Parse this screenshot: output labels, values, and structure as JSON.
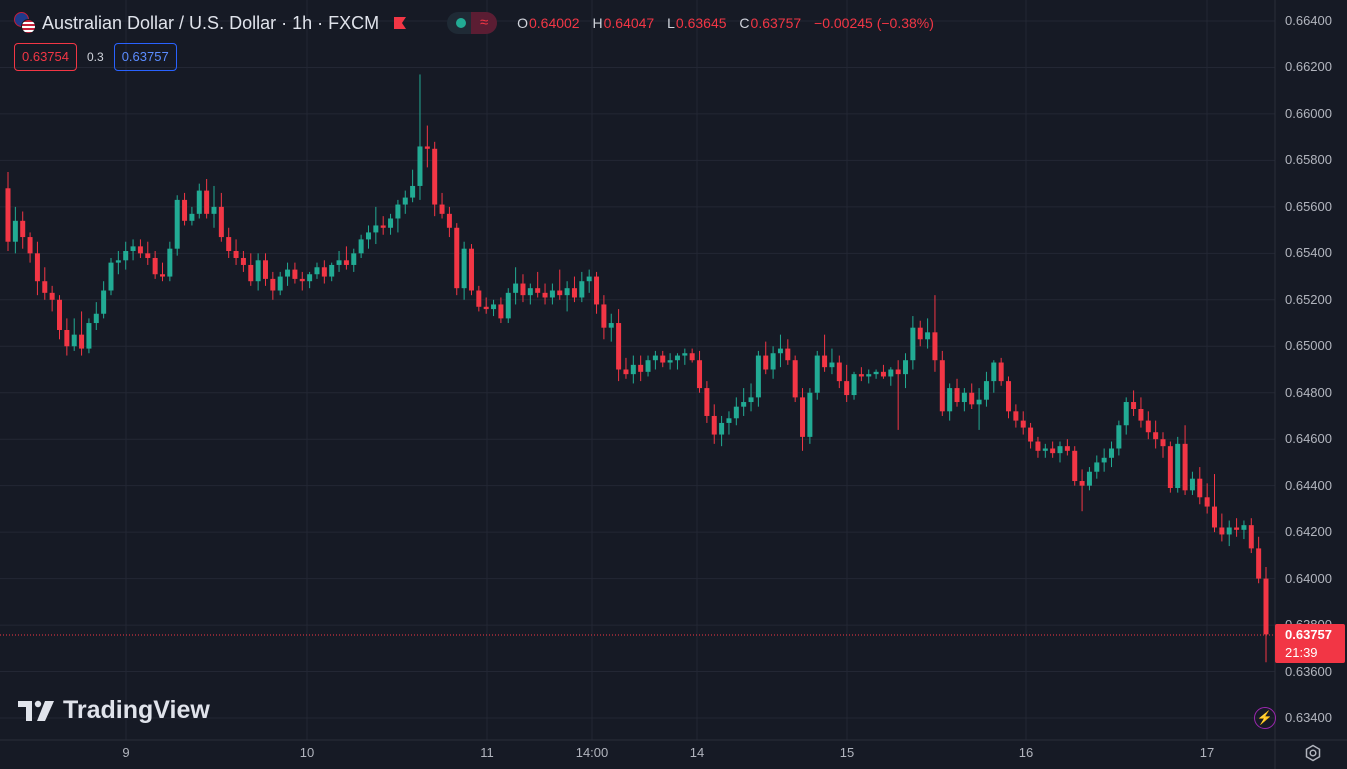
{
  "header": {
    "title": "Australian Dollar / U.S. Dollar · 1h · FXCM",
    "ohlc": {
      "o_label": "O",
      "o": "0.64002",
      "h_label": "H",
      "h": "0.64047",
      "l_label": "L",
      "l": "0.63645",
      "c_label": "C",
      "c": "0.63757",
      "change": "−0.00245 (−0.38%)"
    },
    "market_status_icon": "dot-icon",
    "wave_icon": "≈"
  },
  "quote": {
    "bid": "0.63754",
    "spread": "0.3",
    "ask": "0.63757"
  },
  "price_axis": {
    "labels": [
      "0.66400",
      "0.66200",
      "0.66000",
      "0.65800",
      "0.65600",
      "0.65400",
      "0.65200",
      "0.65000",
      "0.64800",
      "0.64600",
      "0.64400",
      "0.64200",
      "0.64000",
      "0.63800",
      "0.63600",
      "0.63400"
    ]
  },
  "time_axis": {
    "labels": [
      "9",
      "10",
      "11",
      "14:00",
      "14",
      "15",
      "16",
      "17"
    ]
  },
  "last_price": {
    "price": "0.63757",
    "countdown": "21:39"
  },
  "branding": {
    "logo_text": "TradingView"
  },
  "colors": {
    "background": "#161a25",
    "grid": "#232734",
    "up": "#22ab94",
    "down": "#f23645",
    "text": "#b2b5be"
  },
  "chart_data": {
    "type": "candlestick",
    "symbol": "Australian Dollar / U.S. Dollar",
    "interval": "1h",
    "source": "FXCM",
    "ylim": [
      0.633,
      0.665
    ],
    "x_ticks": [
      "9",
      "10",
      "11",
      "14:00",
      "14",
      "15",
      "16",
      "17"
    ],
    "y_ticks": [
      0.664,
      0.662,
      0.66,
      0.658,
      0.656,
      0.654,
      0.652,
      0.65,
      0.648,
      0.646,
      0.644,
      0.642,
      0.64,
      0.638,
      0.636,
      0.634
    ],
    "last_price": 0.63757,
    "candles": [
      [
        0.6568,
        0.6575,
        0.6541,
        0.6545
      ],
      [
        0.6545,
        0.656,
        0.654,
        0.6554
      ],
      [
        0.6554,
        0.6558,
        0.6542,
        0.6547
      ],
      [
        0.6547,
        0.6549,
        0.6536,
        0.654
      ],
      [
        0.654,
        0.6545,
        0.6522,
        0.6528
      ],
      [
        0.6528,
        0.6534,
        0.652,
        0.6523
      ],
      [
        0.6523,
        0.6526,
        0.6515,
        0.652
      ],
      [
        0.652,
        0.6522,
        0.6503,
        0.6507
      ],
      [
        0.6507,
        0.6512,
        0.6496,
        0.65
      ],
      [
        0.65,
        0.6512,
        0.6498,
        0.6505
      ],
      [
        0.6505,
        0.6515,
        0.6496,
        0.6499
      ],
      [
        0.6499,
        0.6512,
        0.6497,
        0.651
      ],
      [
        0.651,
        0.6519,
        0.6507,
        0.6514
      ],
      [
        0.6514,
        0.6528,
        0.6512,
        0.6524
      ],
      [
        0.6524,
        0.6538,
        0.6522,
        0.6536
      ],
      [
        0.6536,
        0.6541,
        0.6531,
        0.6537
      ],
      [
        0.6537,
        0.6545,
        0.6533,
        0.6541
      ],
      [
        0.6541,
        0.6546,
        0.6537,
        0.6543
      ],
      [
        0.6543,
        0.6546,
        0.6538,
        0.654
      ],
      [
        0.654,
        0.6545,
        0.6535,
        0.6538
      ],
      [
        0.6538,
        0.6541,
        0.6529,
        0.6531
      ],
      [
        0.6531,
        0.6536,
        0.6528,
        0.653
      ],
      [
        0.653,
        0.6545,
        0.6528,
        0.6542
      ],
      [
        0.6542,
        0.6565,
        0.6539,
        0.6563
      ],
      [
        0.6563,
        0.6566,
        0.6552,
        0.6554
      ],
      [
        0.6554,
        0.656,
        0.6552,
        0.6557
      ],
      [
        0.6557,
        0.657,
        0.6555,
        0.6567
      ],
      [
        0.6567,
        0.6572,
        0.6555,
        0.6557
      ],
      [
        0.6557,
        0.6569,
        0.6551,
        0.656
      ],
      [
        0.656,
        0.6566,
        0.6545,
        0.6547
      ],
      [
        0.6547,
        0.6551,
        0.6538,
        0.6541
      ],
      [
        0.6541,
        0.6546,
        0.6535,
        0.6538
      ],
      [
        0.6538,
        0.6541,
        0.6532,
        0.6535
      ],
      [
        0.6535,
        0.654,
        0.6526,
        0.6528
      ],
      [
        0.6528,
        0.654,
        0.6524,
        0.6537
      ],
      [
        0.6537,
        0.654,
        0.6526,
        0.6529
      ],
      [
        0.6529,
        0.6532,
        0.652,
        0.6524
      ],
      [
        0.6524,
        0.6532,
        0.6522,
        0.653
      ],
      [
        0.653,
        0.6536,
        0.6526,
        0.6533
      ],
      [
        0.6533,
        0.6536,
        0.6527,
        0.6529
      ],
      [
        0.6529,
        0.6532,
        0.6524,
        0.6528
      ],
      [
        0.6528,
        0.6532,
        0.6525,
        0.6531
      ],
      [
        0.6531,
        0.6536,
        0.6529,
        0.6534
      ],
      [
        0.6534,
        0.6537,
        0.6527,
        0.653
      ],
      [
        0.653,
        0.6536,
        0.6528,
        0.6535
      ],
      [
        0.6535,
        0.6541,
        0.6532,
        0.6537
      ],
      [
        0.6537,
        0.6543,
        0.6533,
        0.6535
      ],
      [
        0.6535,
        0.6542,
        0.6532,
        0.654
      ],
      [
        0.654,
        0.6548,
        0.6538,
        0.6546
      ],
      [
        0.6546,
        0.6552,
        0.6542,
        0.6549
      ],
      [
        0.6549,
        0.656,
        0.6544,
        0.6552
      ],
      [
        0.6552,
        0.6556,
        0.6548,
        0.6551
      ],
      [
        0.6551,
        0.6557,
        0.6548,
        0.6555
      ],
      [
        0.6555,
        0.6563,
        0.6549,
        0.6561
      ],
      [
        0.6561,
        0.6567,
        0.6557,
        0.6564
      ],
      [
        0.6564,
        0.6576,
        0.6562,
        0.6569
      ],
      [
        0.6569,
        0.6617,
        0.6563,
        0.6586
      ],
      [
        0.6586,
        0.6595,
        0.6577,
        0.6585
      ],
      [
        0.6585,
        0.6588,
        0.6556,
        0.6561
      ],
      [
        0.6561,
        0.6566,
        0.6555,
        0.6557
      ],
      [
        0.6557,
        0.656,
        0.6547,
        0.6551
      ],
      [
        0.6551,
        0.6553,
        0.6522,
        0.6525
      ],
      [
        0.6525,
        0.6545,
        0.652,
        0.6542
      ],
      [
        0.6542,
        0.6544,
        0.6522,
        0.6524
      ],
      [
        0.6524,
        0.6526,
        0.6515,
        0.6517
      ],
      [
        0.6517,
        0.6521,
        0.6514,
        0.6516
      ],
      [
        0.6516,
        0.652,
        0.6513,
        0.6518
      ],
      [
        0.6518,
        0.6521,
        0.651,
        0.6512
      ],
      [
        0.6512,
        0.6525,
        0.651,
        0.6523
      ],
      [
        0.6523,
        0.6534,
        0.6518,
        0.6527
      ],
      [
        0.6527,
        0.6531,
        0.6519,
        0.6522
      ],
      [
        0.6522,
        0.6527,
        0.6518,
        0.6525
      ],
      [
        0.6525,
        0.6532,
        0.6521,
        0.6523
      ],
      [
        0.6523,
        0.6527,
        0.6518,
        0.6521
      ],
      [
        0.6521,
        0.6527,
        0.6518,
        0.6524
      ],
      [
        0.6524,
        0.6533,
        0.652,
        0.6522
      ],
      [
        0.6522,
        0.6528,
        0.6515,
        0.6525
      ],
      [
        0.6525,
        0.653,
        0.6519,
        0.6521
      ],
      [
        0.6521,
        0.6532,
        0.6519,
        0.6528
      ],
      [
        0.6528,
        0.6533,
        0.6523,
        0.653
      ],
      [
        0.653,
        0.6532,
        0.6514,
        0.6518
      ],
      [
        0.6518,
        0.6522,
        0.6503,
        0.6508
      ],
      [
        0.6508,
        0.6514,
        0.6502,
        0.651
      ],
      [
        0.651,
        0.6516,
        0.6485,
        0.649
      ],
      [
        0.649,
        0.6495,
        0.6486,
        0.6488
      ],
      [
        0.6488,
        0.6496,
        0.6484,
        0.6492
      ],
      [
        0.6492,
        0.6496,
        0.6485,
        0.6489
      ],
      [
        0.6489,
        0.6496,
        0.6487,
        0.6494
      ],
      [
        0.6494,
        0.6498,
        0.649,
        0.6496
      ],
      [
        0.6496,
        0.6498,
        0.6491,
        0.6493
      ],
      [
        0.6493,
        0.6497,
        0.649,
        0.6494
      ],
      [
        0.6494,
        0.6497,
        0.649,
        0.6496
      ],
      [
        0.6496,
        0.6499,
        0.6492,
        0.6497
      ],
      [
        0.6497,
        0.6499,
        0.6493,
        0.6494
      ],
      [
        0.6494,
        0.6498,
        0.648,
        0.6482
      ],
      [
        0.6482,
        0.6485,
        0.6467,
        0.647
      ],
      [
        0.647,
        0.6475,
        0.6458,
        0.6462
      ],
      [
        0.6462,
        0.647,
        0.6457,
        0.6467
      ],
      [
        0.6467,
        0.6472,
        0.6462,
        0.6469
      ],
      [
        0.6469,
        0.6478,
        0.6466,
        0.6474
      ],
      [
        0.6474,
        0.6482,
        0.647,
        0.6476
      ],
      [
        0.6476,
        0.6484,
        0.6472,
        0.6478
      ],
      [
        0.6478,
        0.6498,
        0.6474,
        0.6496
      ],
      [
        0.6496,
        0.6502,
        0.6488,
        0.649
      ],
      [
        0.649,
        0.65,
        0.6486,
        0.6497
      ],
      [
        0.6497,
        0.6505,
        0.6491,
        0.6499
      ],
      [
        0.6499,
        0.6503,
        0.6492,
        0.6494
      ],
      [
        0.6494,
        0.6496,
        0.6476,
        0.6478
      ],
      [
        0.6478,
        0.6482,
        0.6455,
        0.6461
      ],
      [
        0.6461,
        0.6482,
        0.6458,
        0.648
      ],
      [
        0.648,
        0.6498,
        0.6477,
        0.6496
      ],
      [
        0.6496,
        0.6505,
        0.6489,
        0.6491
      ],
      [
        0.6491,
        0.6499,
        0.6488,
        0.6493
      ],
      [
        0.6493,
        0.6496,
        0.6482,
        0.6485
      ],
      [
        0.6485,
        0.6492,
        0.6476,
        0.6479
      ],
      [
        0.6479,
        0.6489,
        0.6477,
        0.6488
      ],
      [
        0.6488,
        0.6491,
        0.6485,
        0.6487
      ],
      [
        0.6487,
        0.649,
        0.6484,
        0.6488
      ],
      [
        0.6488,
        0.649,
        0.6486,
        0.6489
      ],
      [
        0.6489,
        0.6492,
        0.6486,
        0.6487
      ],
      [
        0.6487,
        0.6491,
        0.6483,
        0.649
      ],
      [
        0.649,
        0.6494,
        0.6464,
        0.6488
      ],
      [
        0.6488,
        0.6497,
        0.6482,
        0.6494
      ],
      [
        0.6494,
        0.6513,
        0.649,
        0.6508
      ],
      [
        0.6508,
        0.6511,
        0.65,
        0.6503
      ],
      [
        0.6503,
        0.6512,
        0.6499,
        0.6506
      ],
      [
        0.6506,
        0.6522,
        0.6489,
        0.6494
      ],
      [
        0.6494,
        0.6498,
        0.647,
        0.6472
      ],
      [
        0.6472,
        0.6484,
        0.6468,
        0.6482
      ],
      [
        0.6482,
        0.6486,
        0.6474,
        0.6476
      ],
      [
        0.6476,
        0.6482,
        0.6472,
        0.648
      ],
      [
        0.648,
        0.6484,
        0.6473,
        0.6475
      ],
      [
        0.6475,
        0.6482,
        0.6464,
        0.6477
      ],
      [
        0.6477,
        0.6489,
        0.6474,
        0.6485
      ],
      [
        0.6485,
        0.6494,
        0.648,
        0.6493
      ],
      [
        0.6493,
        0.6495,
        0.6483,
        0.6485
      ],
      [
        0.6485,
        0.6487,
        0.6469,
        0.6472
      ],
      [
        0.6472,
        0.6475,
        0.6465,
        0.6468
      ],
      [
        0.6468,
        0.6472,
        0.6462,
        0.6465
      ],
      [
        0.6465,
        0.6467,
        0.6456,
        0.6459
      ],
      [
        0.6459,
        0.6461,
        0.6452,
        0.6455
      ],
      [
        0.6455,
        0.6458,
        0.6452,
        0.6456
      ],
      [
        0.6456,
        0.6459,
        0.6452,
        0.6454
      ],
      [
        0.6454,
        0.6459,
        0.645,
        0.6457
      ],
      [
        0.6457,
        0.646,
        0.6453,
        0.6455
      ],
      [
        0.6455,
        0.6457,
        0.644,
        0.6442
      ],
      [
        0.6442,
        0.6447,
        0.6429,
        0.644
      ],
      [
        0.644,
        0.6448,
        0.6438,
        0.6446
      ],
      [
        0.6446,
        0.6453,
        0.6443,
        0.645
      ],
      [
        0.645,
        0.6456,
        0.6446,
        0.6452
      ],
      [
        0.6452,
        0.6459,
        0.6448,
        0.6456
      ],
      [
        0.6456,
        0.6468,
        0.6453,
        0.6466
      ],
      [
        0.6466,
        0.6478,
        0.6462,
        0.6476
      ],
      [
        0.6476,
        0.6481,
        0.647,
        0.6473
      ],
      [
        0.6473,
        0.6478,
        0.6465,
        0.6468
      ],
      [
        0.6468,
        0.6472,
        0.646,
        0.6463
      ],
      [
        0.6463,
        0.6468,
        0.6456,
        0.646
      ],
      [
        0.646,
        0.6463,
        0.6452,
        0.6457
      ],
      [
        0.6457,
        0.6459,
        0.6437,
        0.6439
      ],
      [
        0.6439,
        0.6461,
        0.6437,
        0.6458
      ],
      [
        0.6458,
        0.6466,
        0.6436,
        0.6438
      ],
      [
        0.6438,
        0.6446,
        0.6436,
        0.6443
      ],
      [
        0.6443,
        0.6448,
        0.6432,
        0.6435
      ],
      [
        0.6435,
        0.6441,
        0.6428,
        0.6431
      ],
      [
        0.6431,
        0.6445,
        0.642,
        0.6422
      ],
      [
        0.6422,
        0.6428,
        0.6416,
        0.6419
      ],
      [
        0.6419,
        0.6425,
        0.6414,
        0.6422
      ],
      [
        0.6422,
        0.6426,
        0.6418,
        0.6421
      ],
      [
        0.6421,
        0.6425,
        0.6417,
        0.6423
      ],
      [
        0.6423,
        0.6426,
        0.6411,
        0.6413
      ],
      [
        0.6413,
        0.6418,
        0.6398,
        0.64
      ],
      [
        0.64,
        0.6405,
        0.6364,
        0.6376
      ]
    ]
  }
}
